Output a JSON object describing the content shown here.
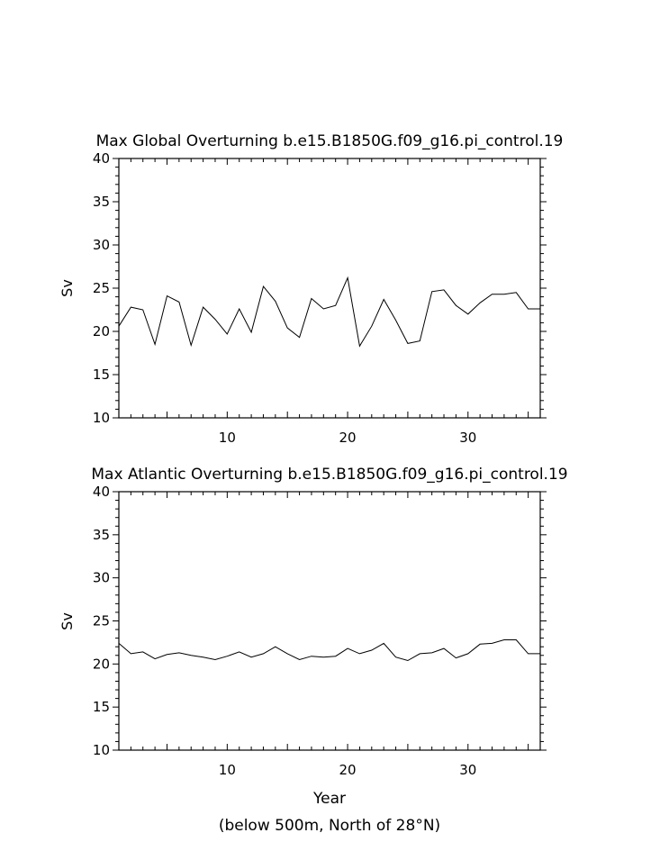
{
  "chart_data": [
    {
      "type": "line",
      "title": "Max Global Overturning b.e15.B1850G.f09_g16.pi_control.19",
      "xlabel": "",
      "ylabel": "Sv",
      "xlim": [
        1,
        36
      ],
      "ylim": [
        10,
        40
      ],
      "xticks": [
        10,
        20,
        30
      ],
      "yticks": [
        10,
        15,
        20,
        25,
        30,
        35,
        40
      ],
      "grid": false,
      "series": [
        {
          "x": [
            1,
            2,
            3,
            4,
            5,
            6,
            7,
            8,
            9,
            10,
            11,
            12,
            13,
            14,
            15,
            16,
            17,
            18,
            19,
            20,
            21,
            22,
            23,
            24,
            25,
            26,
            27,
            28,
            29,
            30,
            31,
            32,
            33,
            34,
            35,
            36
          ],
          "values": [
            20.6,
            22.8,
            22.5,
            18.5,
            24.1,
            23.4,
            18.4,
            22.8,
            21.4,
            19.7,
            22.6,
            19.9,
            25.2,
            23.5,
            20.4,
            19.3,
            23.8,
            22.6,
            23.0,
            26.2,
            18.3,
            20.6,
            23.7,
            21.3,
            18.6,
            18.9,
            24.6,
            24.8,
            23.0,
            22.0,
            23.3,
            24.3,
            24.3,
            24.5,
            22.6,
            22.6
          ]
        }
      ]
    },
    {
      "type": "line",
      "title": "Max Atlantic Overturning b.e15.B1850G.f09_g16.pi_control.19",
      "xlabel": "Year",
      "ylabel": "Sv",
      "subtitle": "(below 500m, North of 28°N)",
      "xlim": [
        1,
        36
      ],
      "ylim": [
        10,
        40
      ],
      "xticks": [
        10,
        20,
        30
      ],
      "yticks": [
        10,
        15,
        20,
        25,
        30,
        35,
        40
      ],
      "grid": false,
      "series": [
        {
          "x": [
            1,
            2,
            3,
            4,
            5,
            6,
            7,
            8,
            9,
            10,
            11,
            12,
            13,
            14,
            15,
            16,
            17,
            18,
            19,
            20,
            21,
            22,
            23,
            24,
            25,
            26,
            27,
            28,
            29,
            30,
            31,
            32,
            33,
            34,
            35,
            36
          ],
          "values": [
            22.4,
            21.2,
            21.4,
            20.6,
            21.1,
            21.3,
            21.0,
            20.8,
            20.5,
            20.9,
            21.4,
            20.8,
            21.2,
            22.0,
            21.2,
            20.5,
            20.9,
            20.8,
            20.9,
            21.8,
            21.2,
            21.6,
            22.4,
            20.8,
            20.4,
            21.2,
            21.3,
            21.8,
            20.7,
            21.2,
            22.3,
            22.4,
            22.8,
            22.8,
            21.2,
            21.2
          ]
        }
      ]
    }
  ]
}
